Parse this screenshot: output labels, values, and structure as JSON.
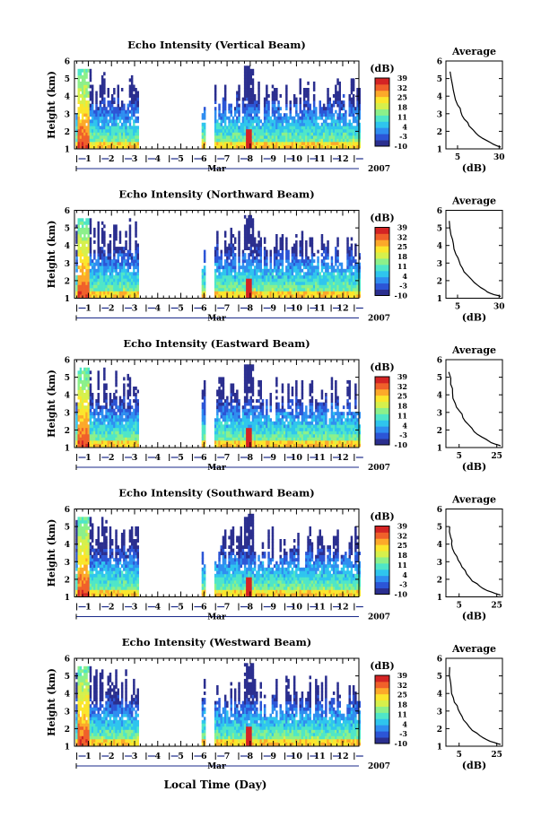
{
  "figure": {
    "colorbar_unit": "(dB)",
    "colorbar_ticks": [
      "39",
      "32",
      "25",
      "18",
      "11",
      "4",
      "-3",
      "-10"
    ],
    "colormap": [
      "#2b2f8f",
      "#2c55d6",
      "#2f8ef0",
      "#2fc5ee",
      "#4fe6c8",
      "#8cf08a",
      "#d6f04c",
      "#fbe62c",
      "#fca92a",
      "#f0602a",
      "#d42424"
    ],
    "x_month_label": "Mar",
    "year_label": "2007",
    "x_axis_title": "Local Time (Day)",
    "height_axis_label": "Height (km)"
  },
  "chart_data": [
    {
      "type": "heatmap",
      "title": "Echo Intensity (Vertical Beam)",
      "ylabel": "Height (km)",
      "y_ticks": [
        "1",
        "2",
        "3",
        "4",
        "5",
        "6"
      ],
      "ylim": [
        1,
        6
      ],
      "x_ticks": [
        "1",
        "2",
        "3",
        "4",
        "5",
        "6",
        "7",
        "8",
        "9",
        "10",
        "11",
        "12"
      ],
      "xlim": [
        0.4,
        12.7
      ],
      "xlabel": "Mar",
      "year": "2007",
      "colorbar": {
        "unit": "(dB)",
        "ticks": [
          "39",
          "32",
          "25",
          "18",
          "11",
          "4",
          "-3",
          "-10"
        ],
        "range": [
          -10,
          39
        ]
      },
      "data_segments_days": [
        [
          0.45,
          3.1
        ],
        [
          5.9,
          6.05
        ],
        [
          6.45,
          12.7
        ]
      ],
      "average_profile": {
        "title": "Average",
        "xlabel": "(dB)",
        "x_ticks": [
          "5",
          "30"
        ],
        "xlim": [
          -2,
          32
        ],
        "y_ticks": [
          "1",
          "2",
          "3",
          "4",
          "5",
          "6"
        ],
        "ylim": [
          1,
          6
        ],
        "x": [
          31,
          28,
          25,
          20,
          16,
          12,
          9,
          7,
          5,
          3,
          2,
          0.5
        ],
        "y": [
          1.1,
          1.2,
          1.35,
          1.6,
          1.9,
          2.3,
          2.7,
          3.1,
          3.5,
          4.1,
          4.6,
          5.4
        ]
      }
    },
    {
      "type": "heatmap",
      "title": "Echo Intensity (Northward Beam)",
      "ylabel": "Height (km)",
      "y_ticks": [
        "1",
        "2",
        "3",
        "4",
        "5",
        "6"
      ],
      "ylim": [
        1,
        6
      ],
      "x_ticks": [
        "1",
        "2",
        "3",
        "4",
        "5",
        "6",
        "7",
        "8",
        "9",
        "10",
        "11",
        "12"
      ],
      "xlim": [
        0.4,
        12.7
      ],
      "xlabel": "Mar",
      "year": "2007",
      "colorbar": {
        "unit": "(dB)",
        "ticks": [
          "39",
          "32",
          "25",
          "18",
          "11",
          "4",
          "-3",
          "-10"
        ],
        "range": [
          -10,
          39
        ]
      },
      "data_segments_days": [
        [
          0.45,
          3.1
        ],
        [
          5.9,
          6.05
        ],
        [
          6.45,
          12.7
        ]
      ],
      "average_profile": {
        "title": "Average",
        "xlabel": "(dB)",
        "x_ticks": [
          "5",
          "30"
        ],
        "xlim": [
          -2,
          32
        ],
        "y_ticks": [
          "1",
          "2",
          "3",
          "4",
          "5",
          "6"
        ],
        "ylim": [
          1,
          6
        ],
        "x": [
          31,
          27,
          23,
          19,
          15,
          11,
          8,
          6,
          4,
          2.5,
          1,
          0
        ],
        "y": [
          1.1,
          1.2,
          1.35,
          1.6,
          1.9,
          2.3,
          2.7,
          3.1,
          3.5,
          4.1,
          4.6,
          5.4
        ]
      }
    },
    {
      "type": "heatmap",
      "title": "Echo Intensity (Eastward Beam)",
      "ylabel": "Height (km)",
      "y_ticks": [
        "1",
        "2",
        "3",
        "4",
        "5",
        "6"
      ],
      "ylim": [
        1,
        6
      ],
      "x_ticks": [
        "1",
        "2",
        "3",
        "4",
        "5",
        "6",
        "7",
        "8",
        "9",
        "10",
        "11",
        "12"
      ],
      "xlim": [
        0.4,
        12.7
      ],
      "xlabel": "Mar",
      "year": "2007",
      "colorbar": {
        "unit": "(dB)",
        "ticks": [
          "39",
          "32",
          "25",
          "18",
          "11",
          "4",
          "-3",
          "-10"
        ],
        "range": [
          -10,
          39
        ]
      },
      "data_segments_days": [
        [
          0.45,
          3.1
        ],
        [
          5.9,
          6.05
        ],
        [
          6.45,
          12.7
        ]
      ],
      "average_profile": {
        "title": "Average",
        "xlabel": "(dB)",
        "x_ticks": [
          "5",
          "25"
        ],
        "xlim": [
          -2,
          28
        ],
        "y_ticks": [
          "1",
          "2",
          "3",
          "4",
          "5",
          "6"
        ],
        "ylim": [
          1,
          6
        ],
        "x": [
          27,
          24,
          21,
          17,
          13,
          10,
          7,
          5,
          3,
          1.5,
          0.5,
          -0.5
        ],
        "y": [
          1.1,
          1.2,
          1.35,
          1.6,
          1.9,
          2.3,
          2.7,
          3.1,
          3.5,
          4.1,
          4.6,
          5.3
        ]
      }
    },
    {
      "type": "heatmap",
      "title": "Echo Intensity (Southward Beam)",
      "ylabel": "Height (km)",
      "y_ticks": [
        "1",
        "2",
        "3",
        "4",
        "5",
        "6"
      ],
      "ylim": [
        1,
        6
      ],
      "x_ticks": [
        "1",
        "2",
        "3",
        "4",
        "5",
        "6",
        "7",
        "8",
        "9",
        "10",
        "11",
        "12"
      ],
      "xlim": [
        0.4,
        12.7
      ],
      "xlabel": "Mar",
      "year": "2007",
      "colorbar": {
        "unit": "(dB)",
        "ticks": [
          "39",
          "32",
          "25",
          "18",
          "11",
          "4",
          "-3",
          "-10"
        ],
        "range": [
          -10,
          39
        ]
      },
      "data_segments_days": [
        [
          0.45,
          3.1
        ],
        [
          5.9,
          6.05
        ],
        [
          6.45,
          12.7
        ]
      ],
      "average_profile": {
        "title": "Average",
        "xlabel": "(dB)",
        "x_ticks": [
          "5",
          "25"
        ],
        "xlim": [
          -2,
          28
        ],
        "y_ticks": [
          "1",
          "2",
          "3",
          "4",
          "5",
          "6"
        ],
        "ylim": [
          1,
          6
        ],
        "x": [
          27,
          24,
          20,
          16,
          12,
          9,
          6.5,
          4.5,
          2.5,
          1,
          0.5,
          0
        ],
        "y": [
          1.1,
          1.2,
          1.35,
          1.6,
          1.9,
          2.3,
          2.7,
          3.1,
          3.5,
          4.0,
          4.4,
          5.0
        ]
      }
    },
    {
      "type": "heatmap",
      "title": "Echo Intensity (Westward Beam)",
      "ylabel": "Height (km)",
      "y_ticks": [
        "1",
        "2",
        "3",
        "4",
        "5",
        "6"
      ],
      "ylim": [
        1,
        6
      ],
      "x_ticks": [
        "1",
        "2",
        "3",
        "4",
        "5",
        "6",
        "7",
        "8",
        "9",
        "10",
        "11",
        "12"
      ],
      "xlim": [
        0.4,
        12.7
      ],
      "xlabel": "Mar",
      "year": "2007",
      "colorbar": {
        "unit": "(dB)",
        "ticks": [
          "39",
          "32",
          "25",
          "18",
          "11",
          "4",
          "-3",
          "-10"
        ],
        "range": [
          -10,
          39
        ]
      },
      "data_segments_days": [
        [
          0.45,
          3.1
        ],
        [
          5.9,
          6.05
        ],
        [
          6.45,
          12.7
        ]
      ],
      "average_profile": {
        "title": "Average",
        "xlabel": "(dB)",
        "x_ticks": [
          "5",
          "25"
        ],
        "xlim": [
          -2,
          28
        ],
        "y_ticks": [
          "1",
          "2",
          "3",
          "4",
          "5",
          "6"
        ],
        "ylim": [
          1,
          6
        ],
        "x": [
          27,
          24,
          20,
          16,
          12,
          9,
          6.5,
          4.5,
          2.5,
          1,
          0.5,
          0
        ],
        "y": [
          1.1,
          1.2,
          1.35,
          1.6,
          1.9,
          2.3,
          2.7,
          3.1,
          3.5,
          4.0,
          4.6,
          5.5
        ]
      }
    }
  ]
}
